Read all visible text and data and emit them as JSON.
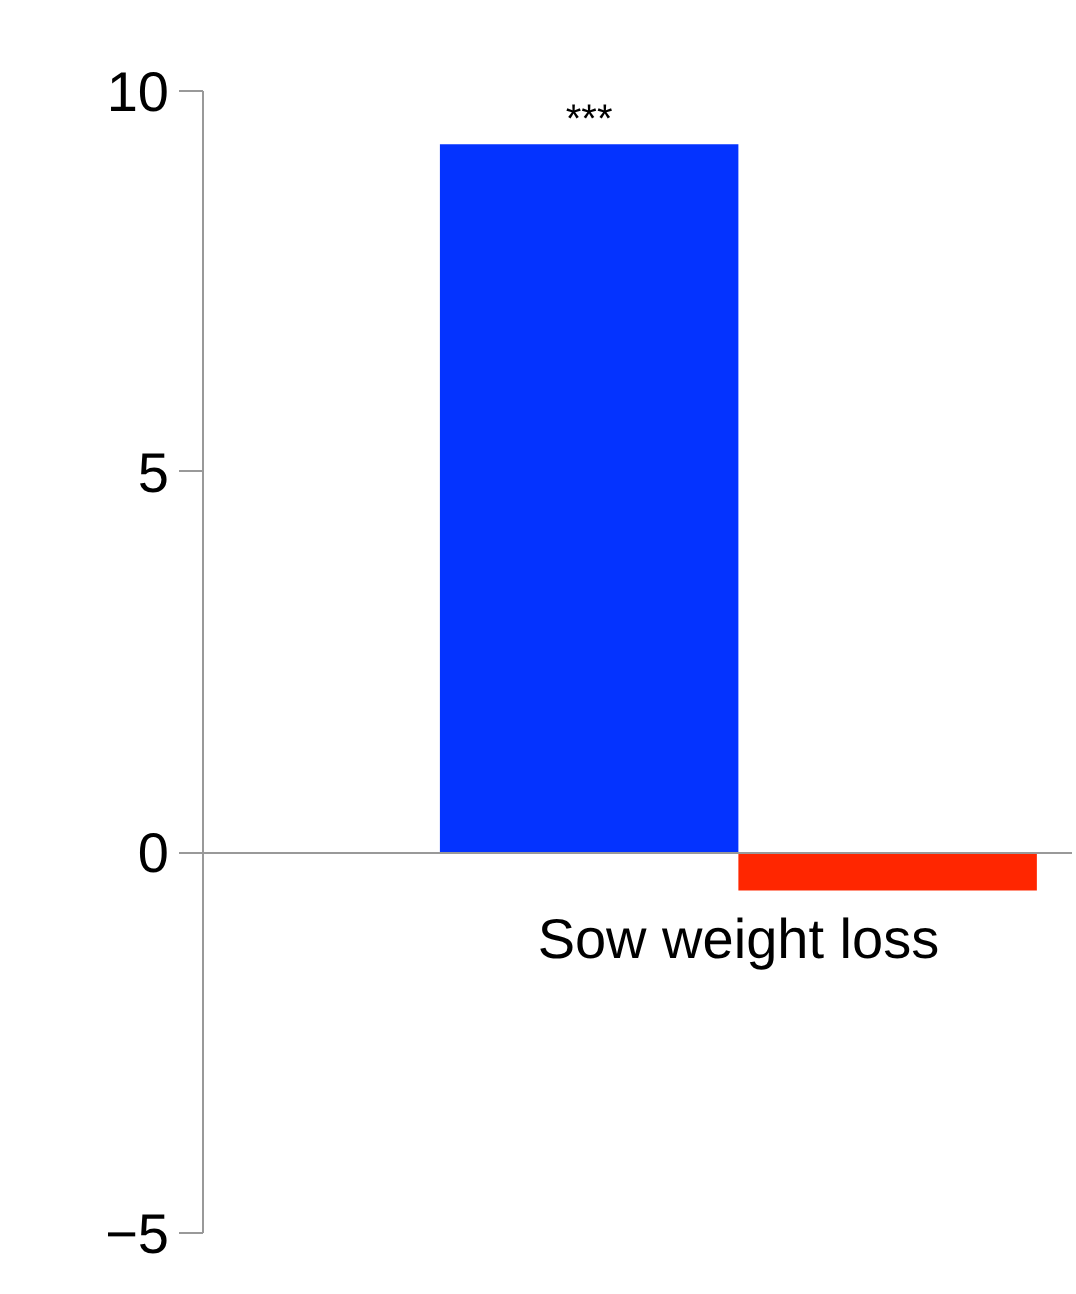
{
  "chart_data": {
    "type": "bar",
    "categories": [
      "Sow weight loss"
    ],
    "series": [
      {
        "color": "#0433ff",
        "values": [
          9.3
        ]
      },
      {
        "color": "#ff2600",
        "values": [
          -0.5
        ]
      }
    ],
    "ylim": [
      -5,
      10
    ],
    "yticks": [
      -5,
      0,
      5,
      10
    ],
    "grid": false,
    "annotations": [
      "***"
    ]
  }
}
